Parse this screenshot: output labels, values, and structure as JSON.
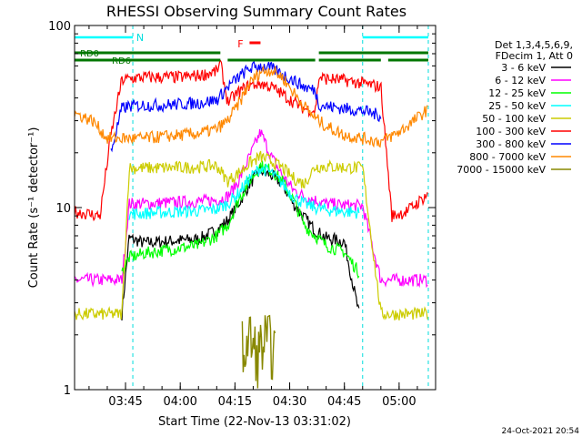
{
  "chart_data": {
    "type": "line",
    "title": "RHESSI Observing Summary Count Rates",
    "xlabel": "Start Time (22-Nov-13 03:31:02)",
    "ylabel": "Count Rate (s⁻¹ detector⁻¹)",
    "y_scale": "log",
    "ylim": [
      1,
      100
    ],
    "xlim": [
      "03:31:02",
      "05:10"
    ],
    "x_ticks": [
      "03:45",
      "04:00",
      "04:15",
      "04:30",
      "04:45",
      "05:00"
    ],
    "y_ticks": [
      "1",
      "10",
      "100"
    ],
    "footer_timestamp": "24-Oct-2021 20:54",
    "legend": {
      "header": [
        "Det 1,3,4,5,6,9,",
        "FDecim 1, Att 0"
      ],
      "placement": "right"
    },
    "annotations": {
      "night_label": "N",
      "flare_label": "F",
      "rd0_label": "RD0",
      "rd6_label": "RD6",
      "night_periods": [
        [
          "03:31:02",
          "03:47"
        ],
        [
          "04:50",
          "05:08"
        ]
      ],
      "flare_period": [
        "04:19",
        "04:22"
      ],
      "rd0_segments": [
        [
          "03:31:02",
          "04:11"
        ],
        [
          "04:38",
          "05:08"
        ]
      ],
      "rd6_segments": [
        [
          "03:31:02",
          "04:11"
        ],
        [
          "04:13",
          "04:37"
        ],
        [
          "04:38",
          "04:55"
        ],
        [
          "04:57",
          "05:08"
        ]
      ]
    },
    "series": [
      {
        "name": "3 - 6 keV",
        "color": "#000000",
        "x": [
          "03:44",
          "03:46",
          "03:50",
          "03:55",
          "04:00",
          "04:05",
          "04:10",
          "04:13",
          "04:16",
          "04:19",
          "04:22",
          "04:25",
          "04:28",
          "04:31",
          "04:34",
          "04:37",
          "04:40",
          "04:45",
          "04:49"
        ],
        "values": [
          2.6,
          6.8,
          6.4,
          6.5,
          6.6,
          6.7,
          7.5,
          8.5,
          10.5,
          13.5,
          16,
          15,
          13.5,
          10.5,
          8.8,
          7.5,
          6.8,
          6.5,
          2.6
        ]
      },
      {
        "name": "6 - 12 keV",
        "color": "#ff00ff",
        "x": [
          "03:31:02",
          "03:40",
          "03:44",
          "03:46",
          "03:50",
          "03:55",
          "04:00",
          "04:05",
          "04:10",
          "04:13",
          "04:16",
          "04:19",
          "04:22",
          "04:25",
          "04:28",
          "04:31",
          "04:34",
          "04:37",
          "04:40",
          "04:45",
          "04:50",
          "04:55",
          "05:02",
          "05:08"
        ],
        "values": [
          4,
          4,
          4,
          10.5,
          10.5,
          10.6,
          10.7,
          10.8,
          11,
          11.5,
          14,
          19,
          26,
          19,
          15,
          12.5,
          11.5,
          11,
          10.5,
          10.3,
          10.2,
          4,
          4,
          4
        ]
      },
      {
        "name": "12 - 25 keV",
        "color": "#00ff00",
        "x": [
          "03:44",
          "03:46",
          "03:50",
          "03:55",
          "04:00",
          "04:05",
          "04:10",
          "04:13",
          "04:16",
          "04:19",
          "04:22",
          "04:25",
          "04:28",
          "04:31",
          "04:34",
          "04:37",
          "04:40",
          "04:45",
          "04:49"
        ],
        "values": [
          4.4,
          5.3,
          5.6,
          5.8,
          6,
          6.2,
          7,
          8,
          11,
          14,
          17,
          16,
          14,
          11,
          8,
          7,
          6.2,
          5.7,
          4.4
        ]
      },
      {
        "name": "25 - 50 keV",
        "color": "#00ffff",
        "x": [
          "03:46",
          "03:50",
          "03:55",
          "04:00",
          "04:05",
          "04:10",
          "04:13",
          "04:16",
          "04:19",
          "04:22",
          "04:25",
          "04:28",
          "04:31",
          "04:34",
          "04:37",
          "04:40",
          "04:45",
          "04:49"
        ],
        "values": [
          9.2,
          9.3,
          9.4,
          9.5,
          9.6,
          9.8,
          10.5,
          12,
          14.5,
          16.5,
          15.5,
          13.5,
          11.5,
          10.5,
          10,
          9.7,
          9.5,
          9.4
        ]
      },
      {
        "name": "50 - 100 keV",
        "color": "#cccc00",
        "x": [
          "03:31:02",
          "03:40",
          "03:44",
          "03:46",
          "03:50",
          "03:55",
          "04:00",
          "04:05",
          "04:10",
          "04:13",
          "04:16",
          "04:19",
          "04:22",
          "04:25",
          "04:28",
          "04:31",
          "04:34",
          "04:37",
          "04:40",
          "04:45",
          "04:50",
          "04:55",
          "05:02",
          "05:08"
        ],
        "values": [
          2.6,
          2.6,
          2.6,
          16.5,
          16.5,
          16.5,
          16.6,
          16.7,
          17,
          14,
          15.5,
          17.5,
          19,
          18,
          16.5,
          14.5,
          13.5,
          16.8,
          16.8,
          16.6,
          16.5,
          2.6,
          2.6,
          2.6
        ]
      },
      {
        "name": "100 - 300 keV",
        "color": "#ff0000",
        "x": [
          "03:31:02",
          "03:38",
          "03:41",
          "03:44",
          "03:46",
          "03:50",
          "03:55",
          "04:00",
          "04:05",
          "04:10",
          "04:11",
          "04:13",
          "04:16",
          "04:19",
          "04:22",
          "04:25",
          "04:28",
          "04:31",
          "04:34",
          "04:37",
          "04:38",
          "04:40",
          "04:45",
          "04:50",
          "04:55",
          "04:58",
          "05:02",
          "05:06",
          "05:08"
        ],
        "values": [
          9.5,
          9,
          25,
          50,
          51,
          52,
          52,
          52,
          53,
          56,
          62,
          38,
          43,
          47,
          48,
          46,
          42,
          38,
          35,
          34,
          52,
          51,
          50,
          48,
          46,
          9,
          9.5,
          11,
          12
        ]
      },
      {
        "name": "300 - 800 keV",
        "color": "#0000ff",
        "x": [
          "03:41",
          "03:44",
          "03:46",
          "03:50",
          "03:55",
          "04:00",
          "04:05",
          "04:10",
          "04:11",
          "04:13",
          "04:16",
          "04:19",
          "04:22",
          "04:25",
          "04:28",
          "04:31",
          "04:34",
          "04:37",
          "04:38",
          "04:40",
          "04:45",
          "04:50",
          "04:55"
        ],
        "values": [
          20,
          35,
          36,
          36.5,
          36.5,
          37,
          37.5,
          39,
          41,
          46,
          52,
          58,
          60,
          58,
          54,
          50,
          46,
          44,
          37,
          36,
          35,
          34,
          32
        ]
      },
      {
        "name": "800 - 7000 keV",
        "color": "#ff8800",
        "x": [
          "03:31:02",
          "03:36",
          "03:40",
          "03:44",
          "03:46",
          "03:50",
          "03:55",
          "04:00",
          "04:05",
          "04:10",
          "04:13",
          "04:16",
          "04:19",
          "04:22",
          "04:25",
          "04:28",
          "04:31",
          "04:34",
          "04:37",
          "04:40",
          "04:45",
          "04:50",
          "04:55",
          "05:00",
          "05:05",
          "05:08"
        ],
        "values": [
          33,
          30,
          24,
          24,
          24,
          24,
          24.5,
          25,
          25.5,
          27,
          30,
          37,
          48,
          56,
          57,
          52,
          43,
          36,
          31,
          28,
          25,
          24,
          23,
          26,
          31,
          35
        ]
      },
      {
        "name": "7000 - 15000 keV",
        "color": "#888800",
        "x": [
          "04:17",
          "04:19",
          "04:21",
          "04:23",
          "04:25",
          "04:26"
        ],
        "values": [
          1.6,
          1.9,
          1.5,
          1.8,
          1.7,
          1.6
        ]
      }
    ]
  }
}
